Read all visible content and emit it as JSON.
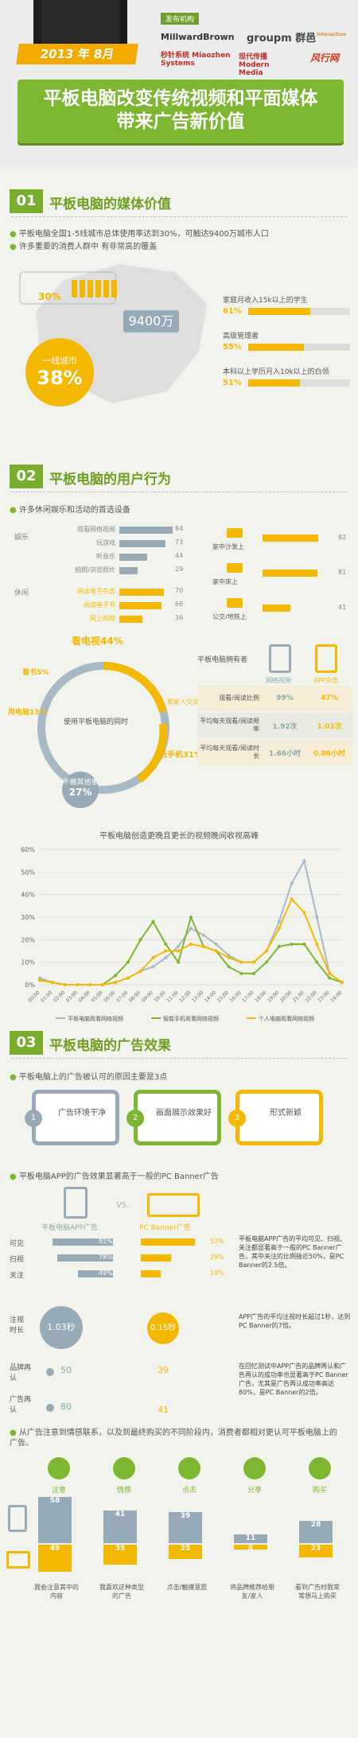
{
  "header": {
    "date": "2013 年 8月",
    "publisher_label": "发布机构",
    "logos": [
      "MillwardBrown",
      "groupm 群邑",
      "Interaction",
      "秒针系统 Miaozhen Systems",
      "现代传播 Modern Media",
      "风行网"
    ],
    "title_line1": "平板电脑改变传统视频和平面媒体",
    "title_line2": "带来广告新价值"
  },
  "s1": {
    "num": "01",
    "title": "平板电脑的媒体价值",
    "bullets": [
      "平板电脑全国1-5线城市总体使用率达到30%，可触达9400万城市人口",
      "许多重要的消费人群中    有非常高的覆盖"
    ],
    "pct30": "30%",
    "pop": "9400万",
    "city_label": "一线城市",
    "city_pct": "38%",
    "groups": [
      {
        "label": "家庭月收入15k以上的学生",
        "value": "61%",
        "v": 61
      },
      {
        "label": "高级管理者",
        "value": "55%",
        "v": 55
      },
      {
        "label": "本科以上学历月入10k以上的白领",
        "value": "51%",
        "v": 51
      }
    ]
  },
  "s2": {
    "num": "02",
    "title": "平板电脑的用户行为",
    "bullet": "许多休闲娱乐和活动的首选设备",
    "ent_label": "娱乐",
    "rest_label": "休闲",
    "acts_g": [
      {
        "label": "观看网络视频",
        "v": 84
      },
      {
        "label": "玩游戏",
        "v": 73
      },
      {
        "label": "听音乐",
        "v": 44
      },
      {
        "label": "拍照/浏览照片",
        "v": 29
      }
    ],
    "acts_y": [
      {
        "label": "阅读电子杂志",
        "v": 70
      },
      {
        "label": "阅读电子书",
        "v": 66
      },
      {
        "label": "网上购物",
        "v": 36
      }
    ],
    "places": [
      {
        "label": "家中沙发上",
        "v": 82
      },
      {
        "label": "家中床上",
        "v": 81
      },
      {
        "label": "公交/地铁上",
        "v": 41
      }
    ],
    "center_label": "使用平板电脑的同时",
    "ring": [
      {
        "label": "看电视44%"
      },
      {
        "label": "和家人交谈40%"
      },
      {
        "label": "玩手机31%"
      },
      {
        "label": "不做其他事"
      },
      {
        "label": "27%"
      },
      {
        "label": "用电脑13%"
      },
      {
        "label": "看书5%"
      }
    ],
    "owner_title": "平板电脑拥有者",
    "col1": "网络视频",
    "col2": "APP杂志",
    "rows": [
      {
        "label": "观看/阅读比例",
        "a": "99%",
        "b": "47%"
      },
      {
        "label": "平均每天观看/阅读频率",
        "a": "1.92次",
        "b": "1.03次"
      },
      {
        "label": "平均每天观看/阅读时长",
        "a": "1.66小时",
        "b": "0.86小时"
      }
    ],
    "chart_title": "平板电脑创造更晚且更长的视频晚间收视高峰"
  },
  "chart_data": {
    "type": "line",
    "title": "平板电脑创造更晚且更长的视频晚间收视高峰",
    "ylim": [
      0,
      60
    ],
    "yticks": [
      "0%",
      "10%",
      "20%",
      "30%",
      "40%",
      "50%",
      "60%"
    ],
    "x": [
      "00:00",
      "01:00",
      "02:00",
      "03:00",
      "04:00",
      "05:00",
      "06:00",
      "07:00",
      "08:00",
      "09:00",
      "10:00",
      "11:00",
      "12:00",
      "13:00",
      "14:00",
      "15:00",
      "16:00",
      "17:00",
      "18:00",
      "19:00",
      "20:00",
      "21:00",
      "22:00",
      "23:00",
      "24:00"
    ],
    "series": [
      {
        "name": "平板电脑观看网络视频",
        "color": "#a7b8c6",
        "values": [
          3,
          1,
          0,
          0,
          0,
          0,
          1,
          3,
          6,
          8,
          12,
          17,
          25,
          22,
          18,
          13,
          10,
          10,
          15,
          28,
          45,
          55,
          30,
          5,
          1
        ]
      },
      {
        "name": "智能手机观看网络视频",
        "color": "#7db631",
        "values": [
          2,
          1,
          0,
          0,
          0,
          0,
          4,
          10,
          20,
          28,
          18,
          10,
          30,
          17,
          15,
          8,
          5,
          5,
          10,
          17,
          18,
          18,
          10,
          3,
          1
        ]
      },
      {
        "name": "个人电脑观看网络视频",
        "color": "#f5b800",
        "values": [
          2,
          1,
          0,
          0,
          0,
          0,
          1,
          3,
          6,
          12,
          15,
          15,
          18,
          17,
          15,
          12,
          10,
          10,
          15,
          25,
          38,
          32,
          18,
          5,
          1
        ]
      }
    ]
  },
  "s3": {
    "num": "03",
    "title": "平板电脑的广告效果",
    "bullet1": "平板电脑上的广告被认可的原因主要是3点",
    "reasons": [
      {
        "n": "1",
        "t": "广告环境干净"
      },
      {
        "n": "2",
        "t": "画面展示效果好"
      },
      {
        "n": "3",
        "t": "形式新颖"
      }
    ],
    "bullet2": "平板电脑APP的广告效果显著高于一般的PC Banner广告",
    "dev_a": "平板电脑APP广告",
    "vs": "VS.",
    "dev_b": "PC Banner广告",
    "metrics": [
      {
        "label": "可见",
        "a": "85%",
        "av": 85,
        "b": "52%",
        "bv": 52
      },
      {
        "label": "扫视",
        "a": "78%",
        "av": 78,
        "b": "29%",
        "bv": 29
      },
      {
        "label": "关注",
        "a": "49%",
        "av": 49,
        "b": "19%",
        "bv": 19
      }
    ],
    "note1": "平板电脑APP广告的平均可见、扫视、关注都显著高于一般的PC Banner广告，其中关注的比例接近50%，是PC Banner的2.5倍。",
    "gaze_label": "注视时长",
    "gaze_a": "1.03秒",
    "gaze_b": "0.15秒",
    "note2": "APP广告的平均注视时长超过1秒，达到PC Banner的7倍。",
    "brand_label": "品牌再认",
    "ad_label": "广告再认",
    "brand_a": "50",
    "brand_b": "39",
    "ad_a": "80",
    "ad_b": "41",
    "note3": "在回忆测试中APP广告的品牌再认和广告再认的成功率也显著高于PC Banner广告，尤其是广告再认成功率高达80%，是PC Banner的2倍。",
    "bullet3": "从广告注意到情感联系，以及到最终购买的不同阶段内，消费者都相对更认可平板电脑上的广告。",
    "stages": [
      {
        "icon": "注意",
        "a": 58,
        "b": 49,
        "desc": "我会注意其中的内容"
      },
      {
        "icon": "情感",
        "a": 41,
        "b": 35,
        "desc": "我喜欢这种类型的广告"
      },
      {
        "icon": "点击",
        "a": 39,
        "b": 25,
        "desc": "点击/触摸意愿"
      },
      {
        "icon": "分享",
        "a": 11,
        "b": 8,
        "desc": "将品牌推荐给朋友/家人"
      },
      {
        "icon": "购买",
        "a": 28,
        "b": 23,
        "desc": "看到广告时我常常想马上购买"
      }
    ]
  }
}
